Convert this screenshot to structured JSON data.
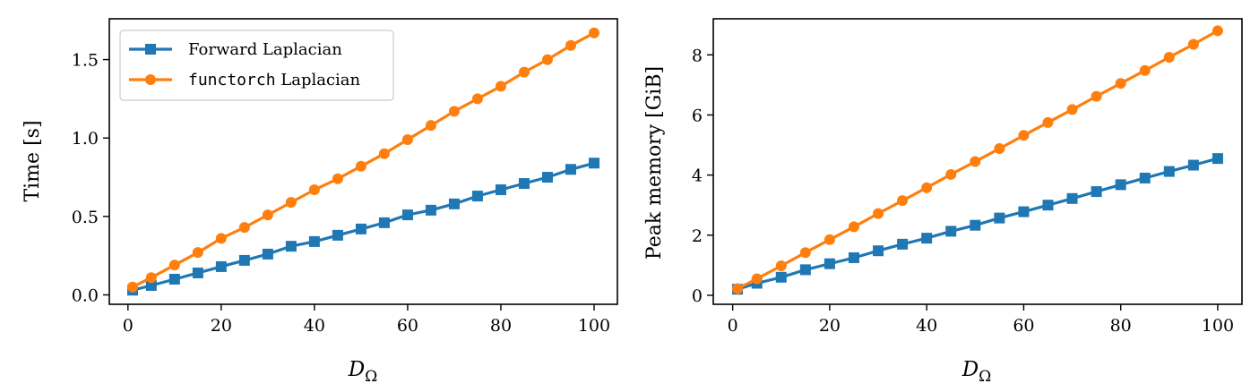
{
  "colors": {
    "series_a": "#1f77b4",
    "series_b": "#ff7f0e"
  },
  "chart_data": [
    {
      "type": "line",
      "ylabel": "Time [s]",
      "xlabel": {
        "main": "D",
        "sub": "Ω"
      },
      "xlim": [
        -4,
        105
      ],
      "ylim": [
        -0.06,
        1.76
      ],
      "xticks": [
        0,
        20,
        40,
        60,
        80,
        100
      ],
      "xtick_labels": [
        "0",
        "20",
        "40",
        "60",
        "80",
        "100"
      ],
      "yticks": [
        0.0,
        0.5,
        1.0,
        1.5
      ],
      "ytick_labels": [
        "0.0",
        "0.5",
        "1.0",
        "1.5"
      ],
      "grid": false,
      "legend": {
        "placement": "upper-left",
        "entries": [
          {
            "series": 0,
            "parts": [
              {
                "text": "Forward Laplacian",
                "mono": false
              }
            ]
          },
          {
            "series": 1,
            "parts": [
              {
                "text": "functorch",
                "mono": true
              },
              {
                "text": " Laplacian",
                "mono": false
              }
            ]
          }
        ]
      },
      "x": [
        1,
        5,
        10,
        15,
        20,
        25,
        30,
        35,
        40,
        45,
        50,
        55,
        60,
        65,
        70,
        75,
        80,
        85,
        90,
        95,
        100
      ],
      "series": [
        {
          "name": "Forward Laplacian",
          "marker": "square",
          "color": "#1f77b4",
          "values": [
            0.03,
            0.06,
            0.1,
            0.14,
            0.18,
            0.22,
            0.26,
            0.31,
            0.34,
            0.38,
            0.42,
            0.46,
            0.51,
            0.54,
            0.58,
            0.63,
            0.67,
            0.71,
            0.75,
            0.8,
            0.84
          ]
        },
        {
          "name": "functorch Laplacian",
          "marker": "circle",
          "color": "#ff7f0e",
          "values": [
            0.05,
            0.11,
            0.19,
            0.27,
            0.36,
            0.43,
            0.51,
            0.59,
            0.67,
            0.74,
            0.82,
            0.9,
            0.99,
            1.08,
            1.17,
            1.25,
            1.33,
            1.42,
            1.5,
            1.59,
            1.67
          ]
        }
      ]
    },
    {
      "type": "line",
      "ylabel": "Peak memory [GiB]",
      "xlabel": {
        "main": "D",
        "sub": "Ω"
      },
      "xlim": [
        -4,
        105
      ],
      "ylim": [
        -0.3,
        9.2
      ],
      "xticks": [
        0,
        20,
        40,
        60,
        80,
        100
      ],
      "xtick_labels": [
        "0",
        "20",
        "40",
        "60",
        "80",
        "100"
      ],
      "yticks": [
        0,
        2,
        4,
        6,
        8
      ],
      "ytick_labels": [
        "0",
        "2",
        "4",
        "6",
        "8"
      ],
      "grid": false,
      "x": [
        1,
        5,
        10,
        15,
        20,
        25,
        30,
        35,
        40,
        45,
        50,
        55,
        60,
        65,
        70,
        75,
        80,
        85,
        90,
        95,
        100
      ],
      "series": [
        {
          "name": "Forward Laplacian",
          "marker": "square",
          "color": "#1f77b4",
          "values": [
            0.2,
            0.4,
            0.6,
            0.85,
            1.05,
            1.25,
            1.48,
            1.7,
            1.9,
            2.13,
            2.33,
            2.57,
            2.78,
            3.0,
            3.22,
            3.45,
            3.68,
            3.9,
            4.12,
            4.33,
            4.55
          ]
        },
        {
          "name": "functorch Laplacian",
          "marker": "circle",
          "color": "#ff7f0e",
          "values": [
            0.22,
            0.55,
            0.98,
            1.42,
            1.85,
            2.28,
            2.72,
            3.15,
            3.58,
            4.02,
            4.45,
            4.88,
            5.32,
            5.75,
            6.18,
            6.62,
            7.05,
            7.48,
            7.92,
            8.35,
            8.8
          ]
        }
      ]
    }
  ]
}
